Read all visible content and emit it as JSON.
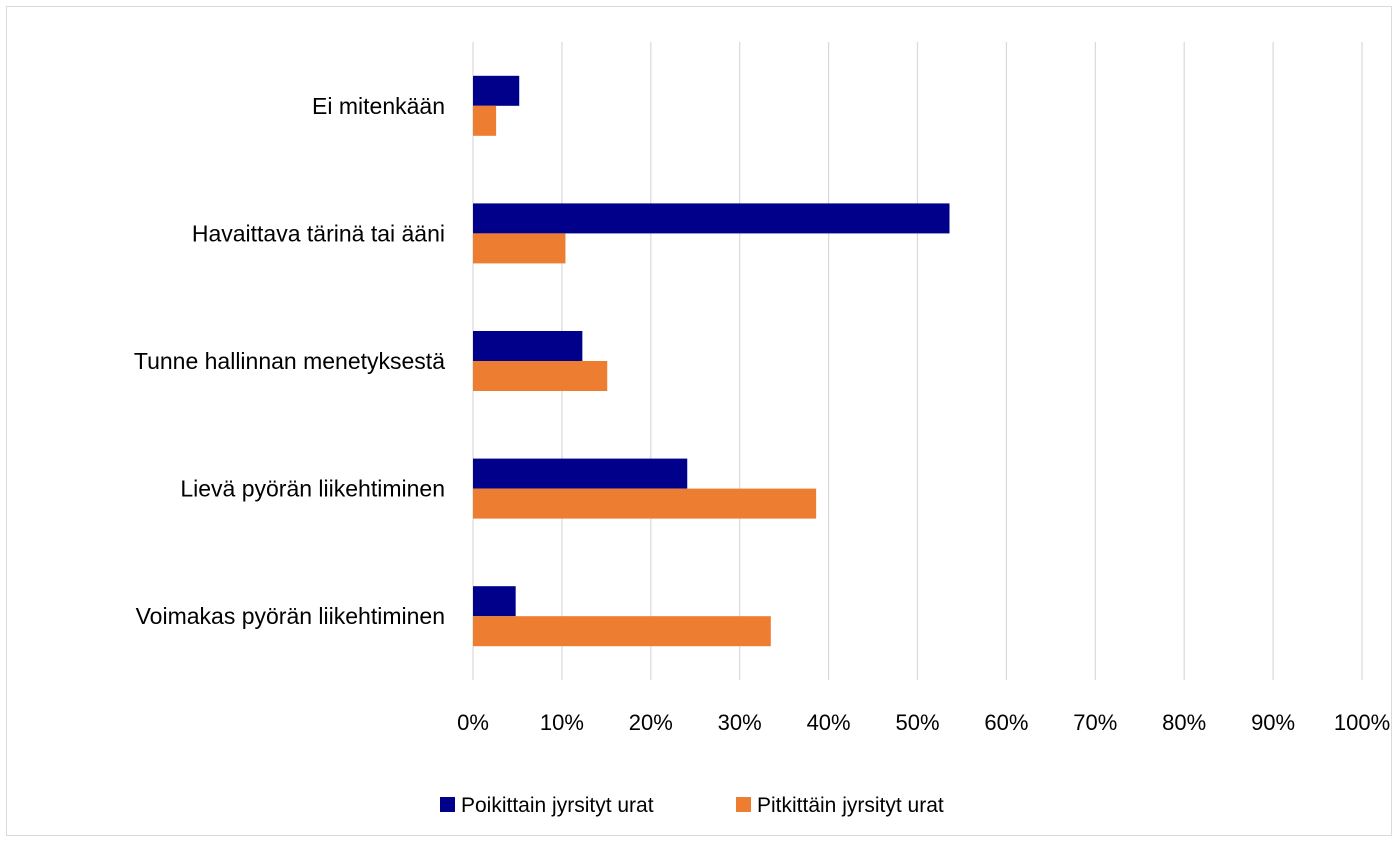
{
  "chart_data": {
    "type": "bar",
    "orientation": "horizontal",
    "categories": [
      "Ei mitenkään",
      "Havaittava tärinä tai ääni",
      "Tunne hallinnan menetyksestä",
      "Lievä pyörän liikehtiminen",
      "Voimakas pyörän liikehtiminen"
    ],
    "series": [
      {
        "name": "Poikittain jyrsityt urat",
        "color": "#00008b",
        "values": [
          5.2,
          53.6,
          12.3,
          24.1,
          4.8
        ]
      },
      {
        "name": "Pitkittäin jyrsityt urat",
        "color": "#ed7d31",
        "values": [
          2.6,
          10.4,
          15.1,
          38.6,
          33.5
        ]
      }
    ],
    "x_ticks": [
      "0%",
      "10%",
      "20%",
      "30%",
      "40%",
      "50%",
      "60%",
      "70%",
      "80%",
      "90%",
      "100%"
    ],
    "xlim": [
      0,
      100
    ],
    "grid": true,
    "legend_position": "bottom",
    "title": "",
    "xlabel": "",
    "ylabel": ""
  }
}
